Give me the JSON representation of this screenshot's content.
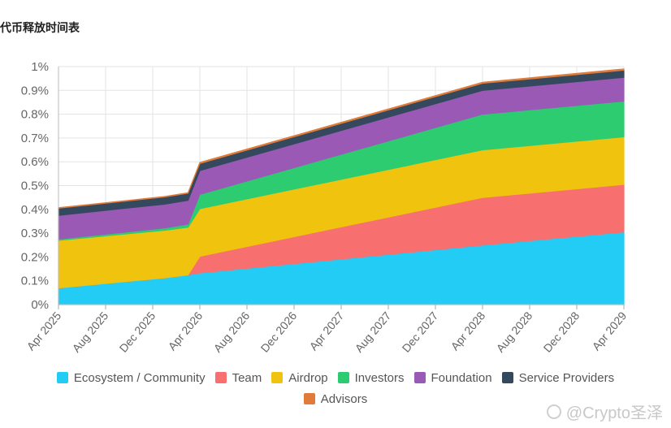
{
  "title": "代币释放时间表",
  "watermark": "@Crypto圣泽",
  "legend": {
    "row1": [
      {
        "name": "Ecosystem / Community",
        "color": "#22ccf5"
      },
      {
        "name": "Team",
        "color": "#f86f6f"
      },
      {
        "name": "Airdrop",
        "color": "#f0c30f"
      },
      {
        "name": "Investors",
        "color": "#2ecc71"
      },
      {
        "name": "Foundation",
        "color": "#9b59b6"
      },
      {
        "name": "Service Providers",
        "color": "#34495e"
      }
    ],
    "row2": [
      {
        "name": "Advisors",
        "color": "#e07b39"
      }
    ]
  },
  "chart_data": {
    "type": "area",
    "stacked": true,
    "grid": true,
    "legend_position": "bottom",
    "x": [
      "Apr 2025",
      "Jan 2026",
      "Mar 2026",
      "Apr 2026",
      "Apr 2028",
      "Apr 2029"
    ],
    "x_tick_labels": [
      "Apr 2025",
      "Aug 2025",
      "Dec 2025",
      "Apr 2026",
      "Aug 2026",
      "Dec 2026",
      "Apr 2027",
      "Aug 2027",
      "Dec 2027",
      "Apr 2028",
      "Aug 2028",
      "Dec 2028",
      "Apr 2029"
    ],
    "y_tick_labels": [
      "0%",
      "0.1%",
      "0.2%",
      "0.3%",
      "0.4%",
      "0.5%",
      "0.6%",
      "0.7%",
      "0.8%",
      "0.9%",
      "1%"
    ],
    "ylim": [
      0,
      1
    ],
    "y_unit": "%",
    "series": [
      {
        "name": "Ecosystem / Community",
        "color": "#22ccf5",
        "values": [
          0.07,
          0.112,
          0.125,
          0.133,
          0.25,
          0.305
        ]
      },
      {
        "name": "Team",
        "color": "#f86f6f",
        "values": [
          0.0,
          0.0,
          0.0,
          0.07,
          0.2,
          0.2
        ]
      },
      {
        "name": "Airdrop",
        "color": "#f0c30f",
        "values": [
          0.2,
          0.2,
          0.2,
          0.2,
          0.2,
          0.2
        ]
      },
      {
        "name": "Investors",
        "color": "#2ecc71",
        "values": [
          0.005,
          0.01,
          0.013,
          0.06,
          0.15,
          0.15
        ]
      },
      {
        "name": "Foundation",
        "color": "#9b59b6",
        "values": [
          0.1,
          0.1,
          0.1,
          0.1,
          0.1,
          0.1
        ]
      },
      {
        "name": "Service Providers",
        "color": "#34495e",
        "values": [
          0.03,
          0.03,
          0.03,
          0.03,
          0.03,
          0.03
        ]
      },
      {
        "name": "Advisors",
        "color": "#e07b39",
        "values": [
          0.002,
          0.002,
          0.002,
          0.004,
          0.004,
          0.005
        ]
      }
    ]
  }
}
